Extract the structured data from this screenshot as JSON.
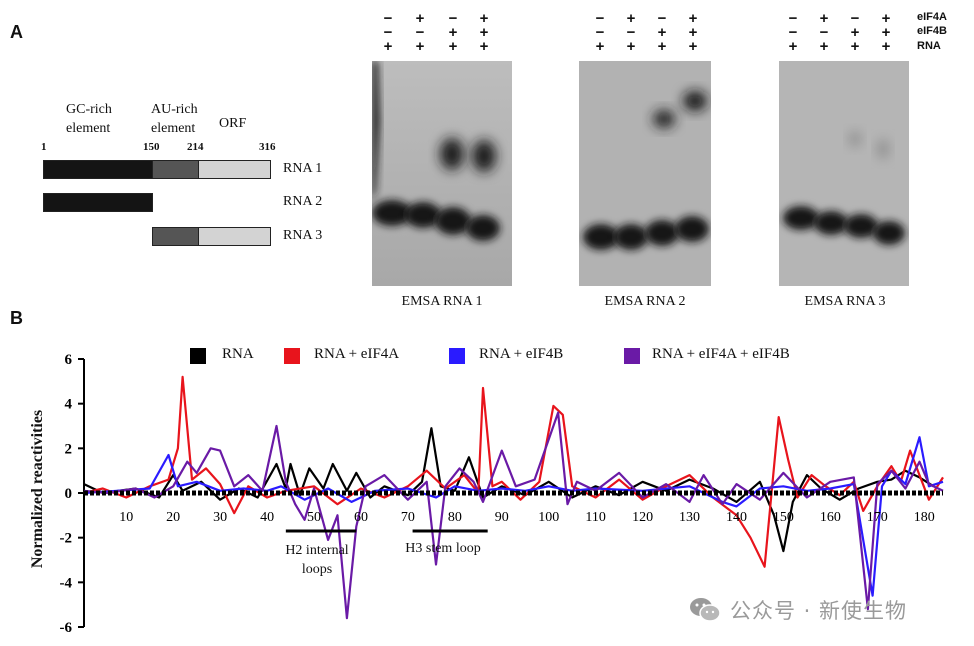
{
  "panel_a": {
    "letter": "A",
    "elements": {
      "gc_rich": "GC-rich\nelement",
      "au_rich": "AU-rich\nelement",
      "orf": "ORF"
    },
    "positions": {
      "p1": "1",
      "p150": "150",
      "p214": "214",
      "p316": "316"
    },
    "rnas": [
      {
        "label": "RNA 1",
        "start": 1,
        "end": 316
      },
      {
        "label": "RNA 2",
        "start": 1,
        "end": 150
      },
      {
        "label": "RNA 3",
        "start": 150,
        "end": 316
      }
    ],
    "colors": {
      "gc": "#141414",
      "au": "#555555",
      "orf": "#d3d3d3"
    },
    "conditions": {
      "row_labels": [
        "eIF4A",
        "eIF4B",
        "RNA"
      ],
      "lanes": [
        [
          "−",
          "+",
          "−",
          "+"
        ],
        [
          "−",
          "−",
          "+",
          "+"
        ],
        [
          "+",
          "+",
          "+",
          "+"
        ]
      ]
    },
    "gels": [
      {
        "caption": "EMSA RNA 1"
      },
      {
        "caption": "EMSA RNA 2"
      },
      {
        "caption": "EMSA RNA 3"
      }
    ]
  },
  "panel_b": {
    "letter": "B",
    "legend": [
      {
        "name": "RNA",
        "color": "#000000"
      },
      {
        "name": "RNA + eIF4A",
        "color": "#e8141c"
      },
      {
        "name": "RNA + eIF4B",
        "color": "#2a1bff"
      },
      {
        "name": "RNA + eIF4A + eIF4B",
        "color": "#6a1aa6"
      }
    ],
    "annotations": [
      {
        "text": "H2 internal\nloops",
        "from": 44,
        "to": 59
      },
      {
        "text": "H3 stem loop",
        "from": 71,
        "to": 87
      }
    ]
  },
  "chart_data": {
    "type": "line",
    "title": "",
    "xlabel": "",
    "ylabel": "Normalized reactivities",
    "xlim": [
      1,
      184
    ],
    "ylim": [
      -6,
      6
    ],
    "x_ticks": [
      10,
      20,
      30,
      40,
      50,
      60,
      70,
      80,
      90,
      100,
      110,
      120,
      130,
      140,
      150,
      160,
      170,
      180
    ],
    "y_ticks": [
      -6,
      -4,
      -2,
      0,
      2,
      4,
      6
    ],
    "series": [
      {
        "name": "RNA",
        "color": "#000000",
        "points": [
          [
            1,
            0.4
          ],
          [
            5,
            0.0
          ],
          [
            12,
            0.2
          ],
          [
            17,
            -0.2
          ],
          [
            20,
            0.8
          ],
          [
            22,
            0.1
          ],
          [
            26,
            0.5
          ],
          [
            30,
            -0.3
          ],
          [
            34,
            0.2
          ],
          [
            38,
            -0.2
          ],
          [
            42,
            1.3
          ],
          [
            44,
            0.2
          ],
          [
            45,
            1.3
          ],
          [
            47,
            -0.1
          ],
          [
            49,
            1.1
          ],
          [
            52,
            0.2
          ],
          [
            54,
            1.3
          ],
          [
            57,
            0.1
          ],
          [
            59,
            0.9
          ],
          [
            62,
            -0.2
          ],
          [
            65,
            0.3
          ],
          [
            70,
            -0.1
          ],
          [
            73,
            0.5
          ],
          [
            75,
            2.9
          ],
          [
            77,
            0.3
          ],
          [
            80,
            0.1
          ],
          [
            83,
            1.6
          ],
          [
            86,
            -0.2
          ],
          [
            90,
            0.3
          ],
          [
            95,
            -0.1
          ],
          [
            100,
            0.5
          ],
          [
            105,
            -0.2
          ],
          [
            110,
            0.3
          ],
          [
            115,
            -0.1
          ],
          [
            120,
            0.5
          ],
          [
            125,
            0.1
          ],
          [
            130,
            0.6
          ],
          [
            135,
            0.2
          ],
          [
            140,
            -0.4
          ],
          [
            145,
            0.5
          ],
          [
            148,
            -1.0
          ],
          [
            150,
            -2.6
          ],
          [
            152,
            -0.4
          ],
          [
            155,
            0.8
          ],
          [
            158,
            0.2
          ],
          [
            162,
            -0.3
          ],
          [
            166,
            0.2
          ],
          [
            170,
            0.5
          ],
          [
            173,
            0.6
          ],
          [
            176,
            1.0
          ],
          [
            179,
            0.7
          ],
          [
            182,
            0.3
          ]
        ]
      },
      {
        "name": "RNA + eIF4A",
        "color": "#e8141c",
        "points": [
          [
            1,
            0.0
          ],
          [
            5,
            0.2
          ],
          [
            10,
            -0.2
          ],
          [
            15,
            0.3
          ],
          [
            19,
            0.6
          ],
          [
            21,
            2.0
          ],
          [
            22,
            5.2
          ],
          [
            24,
            0.6
          ],
          [
            27,
            1.1
          ],
          [
            30,
            0.4
          ],
          [
            33,
            -0.9
          ],
          [
            36,
            0.3
          ],
          [
            40,
            -0.2
          ],
          [
            44,
            0.1
          ],
          [
            50,
            0.3
          ],
          [
            55,
            -0.5
          ],
          [
            60,
            0.2
          ],
          [
            65,
            -0.2
          ],
          [
            70,
            0.3
          ],
          [
            74,
            1.0
          ],
          [
            78,
            0.2
          ],
          [
            82,
            0.8
          ],
          [
            85,
            0.0
          ],
          [
            86,
            4.7
          ],
          [
            88,
            0.3
          ],
          [
            90,
            0.5
          ],
          [
            94,
            -0.3
          ],
          [
            98,
            0.5
          ],
          [
            101,
            3.9
          ],
          [
            103,
            3.5
          ],
          [
            105,
            0.3
          ],
          [
            110,
            -0.2
          ],
          [
            115,
            0.6
          ],
          [
            120,
            -0.3
          ],
          [
            125,
            0.3
          ],
          [
            130,
            0.8
          ],
          [
            135,
            -0.2
          ],
          [
            140,
            -1.0
          ],
          [
            143,
            -2.0
          ],
          [
            146,
            -3.3
          ],
          [
            149,
            3.4
          ],
          [
            151,
            1.5
          ],
          [
            153,
            -0.2
          ],
          [
            156,
            0.8
          ],
          [
            159,
            0.3
          ],
          [
            162,
            -0.1
          ],
          [
            165,
            0.5
          ],
          [
            167,
            -0.8
          ],
          [
            170,
            0.3
          ],
          [
            173,
            1.2
          ],
          [
            175,
            0.5
          ],
          [
            177,
            1.9
          ],
          [
            179,
            0.8
          ],
          [
            181,
            -0.3
          ],
          [
            184,
            0.7
          ]
        ]
      },
      {
        "name": "RNA + eIF4B",
        "color": "#2a1bff",
        "points": [
          [
            1,
            0.0
          ],
          [
            8,
            0.1
          ],
          [
            15,
            0.2
          ],
          [
            19,
            1.7
          ],
          [
            21,
            0.3
          ],
          [
            25,
            0.5
          ],
          [
            30,
            0.1
          ],
          [
            35,
            0.2
          ],
          [
            40,
            0.1
          ],
          [
            43,
            0.3
          ],
          [
            48,
            -0.3
          ],
          [
            53,
            0.2
          ],
          [
            58,
            -0.4
          ],
          [
            63,
            0.1
          ],
          [
            70,
            0.2
          ],
          [
            76,
            -0.2
          ],
          [
            80,
            0.3
          ],
          [
            85,
            0.1
          ],
          [
            90,
            0.2
          ],
          [
            95,
            0.1
          ],
          [
            100,
            0.3
          ],
          [
            105,
            0.1
          ],
          [
            110,
            0.2
          ],
          [
            120,
            0.1
          ],
          [
            130,
            0.3
          ],
          [
            137,
            -0.4
          ],
          [
            140,
            -0.6
          ],
          [
            145,
            0.2
          ],
          [
            150,
            0.3
          ],
          [
            155,
            0.1
          ],
          [
            160,
            0.2
          ],
          [
            165,
            0.4
          ],
          [
            169,
            -4.6
          ],
          [
            171,
            0.3
          ],
          [
            173,
            1.0
          ],
          [
            176,
            0.4
          ],
          [
            179,
            2.5
          ],
          [
            181,
            0.3
          ],
          [
            184,
            0.5
          ]
        ]
      },
      {
        "name": "RNA + eIF4A + eIF4B",
        "color": "#6a1aa6",
        "points": [
          [
            1,
            0.1
          ],
          [
            6,
            0.0
          ],
          [
            12,
            0.2
          ],
          [
            16,
            -0.2
          ],
          [
            20,
            0.3
          ],
          [
            23,
            1.4
          ],
          [
            25,
            0.9
          ],
          [
            28,
            2.0
          ],
          [
            30,
            1.9
          ],
          [
            33,
            0.3
          ],
          [
            36,
            0.8
          ],
          [
            39,
            0.1
          ],
          [
            42,
            3.0
          ],
          [
            44,
            0.5
          ],
          [
            46,
            -0.5
          ],
          [
            48,
            -1.2
          ],
          [
            50,
            0.2
          ],
          [
            53,
            -2.1
          ],
          [
            55,
            -1.0
          ],
          [
            57,
            -5.6
          ],
          [
            59,
            -1.5
          ],
          [
            61,
            0.3
          ],
          [
            65,
            0.8
          ],
          [
            70,
            -0.3
          ],
          [
            74,
            0.5
          ],
          [
            76,
            -3.2
          ],
          [
            78,
            0.3
          ],
          [
            81,
            1.1
          ],
          [
            84,
            0.5
          ],
          [
            86,
            -0.4
          ],
          [
            90,
            1.9
          ],
          [
            93,
            0.3
          ],
          [
            97,
            0.6
          ],
          [
            102,
            3.6
          ],
          [
            104,
            -0.5
          ],
          [
            106,
            0.5
          ],
          [
            110,
            0.1
          ],
          [
            115,
            0.9
          ],
          [
            120,
            -0.2
          ],
          [
            125,
            0.4
          ],
          [
            130,
            -0.4
          ],
          [
            133,
            0.8
          ],
          [
            137,
            -0.5
          ],
          [
            140,
            0.4
          ],
          [
            145,
            -0.3
          ],
          [
            150,
            0.9
          ],
          [
            155,
            -0.2
          ],
          [
            160,
            0.5
          ],
          [
            165,
            0.7
          ],
          [
            168,
            -5.2
          ],
          [
            170,
            0.4
          ],
          [
            173,
            1.0
          ],
          [
            176,
            0.2
          ],
          [
            179,
            1.4
          ],
          [
            181,
            0.4
          ],
          [
            184,
            0.1
          ]
        ]
      }
    ]
  },
  "watermark": {
    "logo": "wechat-logo",
    "text": "公众号 · 新使生物"
  }
}
